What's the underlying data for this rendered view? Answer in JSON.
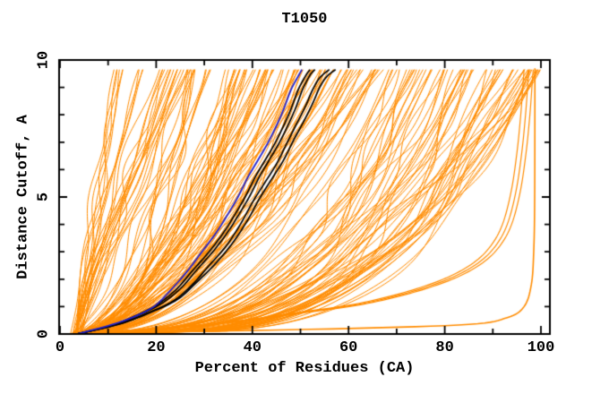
{
  "chart_data": {
    "type": "line",
    "title": "T1050",
    "xlabel": "Percent of Residues (CA)",
    "ylabel": "Distance Cutoff, A",
    "xlim": [
      0,
      102
    ],
    "ylim": [
      0,
      10
    ],
    "x_ticks_major": [
      0,
      20,
      40,
      60,
      80,
      100
    ],
    "x_minor_step": 10,
    "y_ticks_major": [
      0,
      5,
      10
    ],
    "y_minor_step": 1,
    "grid": false,
    "legend": null,
    "curve_y_end": 9.65,
    "colors": {
      "ensemble": "#ff8c00",
      "reference": "#000000",
      "highlight": "#2222cc",
      "axis": "#000000",
      "background": "#ffffff"
    },
    "series": [
      {
        "name": "model-ensemble-orange",
        "color": "#ff8c00",
        "width": 1,
        "style": "generated",
        "count": 176,
        "generator": {
          "seed": 20231050,
          "x_start_range": [
            2.2,
            4.5
          ],
          "y_end": 9.65,
          "wiggle_freq_range": [
            0.5,
            1.5
          ],
          "groups": [
            {
              "name": "steep-left",
              "count": 26,
              "x_top_range": [
                10,
                28
              ],
              "exp_range": [
                0.85,
                1.35
              ],
              "bias": 1.0,
              "wiggle_amp": [
                0.4,
                2.0
              ]
            },
            {
              "name": "mid-mass",
              "count": 88,
              "x_top_range": [
                26,
                68
              ],
              "exp_range": [
                0.4,
                0.7
              ],
              "bias": 1.0,
              "wiggle_amp": [
                0.6,
                2.6
              ]
            },
            {
              "name": "right-sweep",
              "count": 62,
              "x_top_range": [
                63,
                100
              ],
              "exp_range": [
                0.22,
                0.42
              ],
              "bias": 0.65,
              "wiggle_amp": [
                0.6,
                3.2
              ]
            }
          ]
        }
      },
      {
        "name": "low-outlier-bundle",
        "color": "#ff8c00",
        "width": 1.2,
        "style": "points",
        "offsets": [
          0,
          1.0,
          1.9
        ],
        "points": [
          [
            3,
            0.02
          ],
          [
            10,
            0.1
          ],
          [
            20,
            0.2
          ],
          [
            30,
            0.35
          ],
          [
            40,
            0.55
          ],
          [
            50,
            0.8
          ],
          [
            60,
            1.05
          ],
          [
            68,
            1.35
          ],
          [
            75,
            1.7
          ],
          [
            81,
            2.1
          ],
          [
            86,
            2.6
          ],
          [
            89.5,
            3.2
          ],
          [
            92,
            4.0
          ],
          [
            93.8,
            5.2
          ],
          [
            95,
            6.6
          ],
          [
            95.8,
            8.0
          ],
          [
            96.3,
            9.2
          ],
          [
            96.5,
            9.65
          ]
        ]
      },
      {
        "name": "right-edge-spike",
        "color": "#ff8c00",
        "width": 1.6,
        "style": "points",
        "offsets": [
          0
        ],
        "points": [
          [
            30,
            0.1
          ],
          [
            60,
            0.2
          ],
          [
            85,
            0.35
          ],
          [
            93,
            0.6
          ],
          [
            96.5,
            1.0
          ],
          [
            98,
            1.8
          ],
          [
            98.5,
            3.0
          ],
          [
            98.7,
            5.0
          ],
          [
            98.75,
            9.7
          ]
        ]
      },
      {
        "name": "reference-black-1",
        "color": "#000000",
        "width": 1.7,
        "style": "points",
        "offsets": [
          0
        ],
        "points": [
          [
            3.5,
            0
          ],
          [
            10.5,
            0.3
          ],
          [
            15.5,
            0.65
          ],
          [
            20,
            1.05
          ],
          [
            24,
            1.6
          ],
          [
            27.5,
            2.3
          ],
          [
            31,
            3.0
          ],
          [
            34,
            3.7
          ],
          [
            36.5,
            4.4
          ],
          [
            38.5,
            5.0
          ],
          [
            40.5,
            5.7
          ],
          [
            42.5,
            6.3
          ],
          [
            44.5,
            6.9
          ],
          [
            46.5,
            7.6
          ],
          [
            48,
            8.2
          ],
          [
            49.5,
            8.9
          ],
          [
            51,
            9.4
          ],
          [
            52,
            9.65
          ]
        ]
      },
      {
        "name": "reference-black-2",
        "color": "#000000",
        "width": 1.7,
        "style": "points",
        "offsets": [
          0
        ],
        "points": [
          [
            3.5,
            0
          ],
          [
            11,
            0.32
          ],
          [
            16.5,
            0.7
          ],
          [
            21,
            1.1
          ],
          [
            25,
            1.65
          ],
          [
            28.5,
            2.35
          ],
          [
            32,
            3.05
          ],
          [
            35,
            3.75
          ],
          [
            37.5,
            4.45
          ],
          [
            39.5,
            5.05
          ],
          [
            41.5,
            5.75
          ],
          [
            43.5,
            6.35
          ],
          [
            45.5,
            6.95
          ],
          [
            47.5,
            7.65
          ],
          [
            49,
            8.25
          ],
          [
            50.5,
            8.95
          ],
          [
            52,
            9.45
          ],
          [
            53,
            9.65
          ]
        ]
      },
      {
        "name": "reference-black-3",
        "color": "#000000",
        "width": 1.7,
        "style": "points",
        "offsets": [
          0
        ],
        "points": [
          [
            3.5,
            0
          ],
          [
            12,
            0.35
          ],
          [
            18,
            0.75
          ],
          [
            23.5,
            1.2
          ],
          [
            27.5,
            1.8
          ],
          [
            31,
            2.5
          ],
          [
            34.5,
            3.2
          ],
          [
            37.5,
            4.0
          ],
          [
            40,
            4.8
          ],
          [
            42.5,
            5.5
          ],
          [
            45,
            6.2
          ],
          [
            47,
            6.9
          ],
          [
            49,
            7.6
          ],
          [
            51,
            8.3
          ],
          [
            52.5,
            8.9
          ],
          [
            54,
            9.35
          ],
          [
            56,
            9.65
          ]
        ]
      },
      {
        "name": "reference-black-4",
        "color": "#000000",
        "width": 1.7,
        "style": "points",
        "offsets": [
          0
        ],
        "points": [
          [
            3.5,
            0
          ],
          [
            12.5,
            0.37
          ],
          [
            19,
            0.8
          ],
          [
            24.5,
            1.27
          ],
          [
            28.5,
            1.9
          ],
          [
            32.5,
            2.6
          ],
          [
            36,
            3.35
          ],
          [
            39,
            4.15
          ],
          [
            41.5,
            4.95
          ],
          [
            44,
            5.65
          ],
          [
            46.5,
            6.35
          ],
          [
            48.5,
            7.05
          ],
          [
            50.5,
            7.7
          ],
          [
            52.5,
            8.4
          ],
          [
            54,
            9.0
          ],
          [
            55.5,
            9.4
          ],
          [
            57.3,
            9.65
          ]
        ]
      },
      {
        "name": "highlight-blue",
        "color": "#2222cc",
        "width": 1.8,
        "style": "points",
        "offsets": [
          0
        ],
        "points": [
          [
            3.5,
            0
          ],
          [
            10,
            0.3
          ],
          [
            15,
            0.6
          ],
          [
            19.5,
            1.0
          ],
          [
            23,
            1.6
          ],
          [
            26.5,
            2.3
          ],
          [
            29.5,
            3.0
          ],
          [
            32.5,
            3.7
          ],
          [
            35,
            4.4
          ],
          [
            37,
            5.0
          ],
          [
            39,
            5.7
          ],
          [
            41,
            6.3
          ],
          [
            43,
            6.9
          ],
          [
            45,
            7.6
          ],
          [
            46.5,
            8.2
          ],
          [
            48,
            8.9
          ],
          [
            49.5,
            9.4
          ],
          [
            50.3,
            9.65
          ]
        ]
      }
    ]
  }
}
